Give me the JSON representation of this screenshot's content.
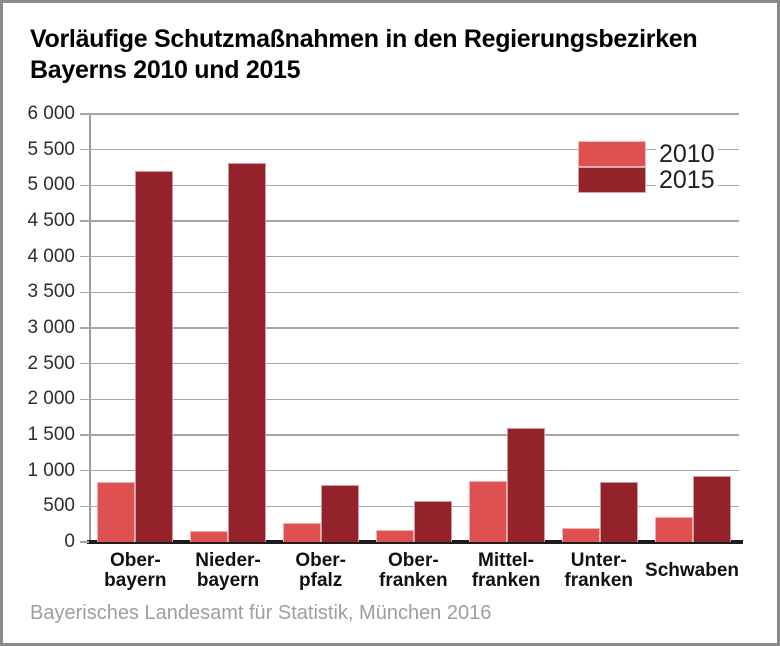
{
  "page": {
    "title_line1": "Vorläufige Schutzmaßnahmen in den Regierungsbezirken",
    "title_line2": "Bayerns 2010 und 2015",
    "source": "Bayerisches Landesamt für Statistik, München 2016"
  },
  "colors": {
    "series_2010": "#DF5150",
    "series_2015": "#93222A",
    "gridline": "#A6A6A6",
    "axis_line": "#9B9B9B",
    "baseline": "#1C1C1C",
    "frame_border": "#8A8A8A",
    "source_text": "#9E9E9E"
  },
  "chart_data": {
    "type": "bar",
    "title": "Vorläufige Schutzmaßnahmen in den Regierungsbezirken Bayerns 2010 und 2015",
    "categories": [
      "Ober-\nbayern",
      "Nieder-\nbayern",
      "Ober-\npfalz",
      "Ober-\nfranken",
      "Mittel-\nfranken",
      "Unter-\nfranken",
      "Schwaben"
    ],
    "series": [
      {
        "name": "2010",
        "color": "#DF5150",
        "values": [
          840,
          150,
          260,
          170,
          860,
          190,
          350
        ]
      },
      {
        "name": "2015",
        "color": "#93222A",
        "values": [
          5200,
          5310,
          800,
          570,
          1600,
          840,
          920
        ]
      }
    ],
    "xlabel": "",
    "ylabel": "",
    "ylim": [
      0,
      6000
    ],
    "ytick_step": 500,
    "ytick_labels": [
      "0",
      "500",
      "1 000",
      "1 500",
      "2 000",
      "2 500",
      "3 000",
      "3 500",
      "4 000",
      "4 500",
      "5 000",
      "5 500",
      "6 000"
    ],
    "grid": true,
    "legend_position": "top-right",
    "source": "Bayerisches Landesamt für Statistik, München 2016"
  }
}
